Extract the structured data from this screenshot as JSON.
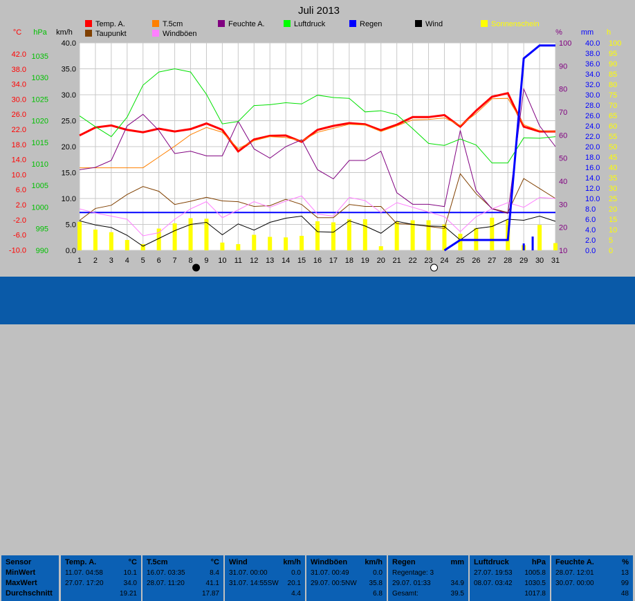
{
  "chart_data": {
    "type": "line",
    "title": "Juli 2013",
    "x": [
      1,
      2,
      3,
      4,
      5,
      6,
      7,
      8,
      9,
      10,
      11,
      12,
      13,
      14,
      15,
      16,
      17,
      18,
      19,
      20,
      21,
      22,
      23,
      24,
      25,
      26,
      27,
      28,
      29,
      30,
      31
    ],
    "axes": {
      "temp": {
        "label": "°C",
        "ticks": [
          "42.0",
          "38.0",
          "34.0",
          "30.0",
          "26.0",
          "22.0",
          "18.0",
          "14.0",
          "10.0",
          "6.0",
          "2.0",
          "-2.0",
          "-6.0",
          "-10.0"
        ],
        "range": [
          -10,
          42
        ],
        "color": "#ff0000"
      },
      "hpa": {
        "label": "hPa",
        "ticks": [
          "1035",
          "1030",
          "1025",
          "1020",
          "1015",
          "1010",
          "1005",
          "1000",
          "995",
          "990"
        ],
        "color": "#00c000"
      },
      "kmh": {
        "label": "km/h",
        "ticks": [
          "40.0",
          "35.0",
          "30.0",
          "25.0",
          "20.0",
          "15.0",
          "10.0",
          "5.0",
          "0.0"
        ],
        "range": [
          0,
          40
        ],
        "color": "#000000"
      },
      "pct": {
        "label": "%",
        "ticks": [
          "100",
          "90",
          "80",
          "70",
          "60",
          "50",
          "40",
          "30",
          "20",
          "10"
        ],
        "range": [
          10,
          100
        ],
        "color": "#800080"
      },
      "mm": {
        "label": "mm",
        "ticks": [
          "40.0",
          "38.0",
          "36.0",
          "34.0",
          "32.0",
          "30.0",
          "28.0",
          "26.0",
          "24.0",
          "22.0",
          "20.0",
          "18.0",
          "16.0",
          "14.0",
          "12.0",
          "10.0",
          "8.0",
          "6.0",
          "4.0",
          "2.0",
          "0.0"
        ],
        "range": [
          0,
          40
        ],
        "color": "#0000ff"
      },
      "h": {
        "label": "h",
        "ticks": [
          "100",
          "95",
          "90",
          "85",
          "80",
          "75",
          "70",
          "65",
          "60",
          "55",
          "50",
          "45",
          "40",
          "35",
          "30",
          "25",
          "20",
          "15",
          "10",
          "5",
          "0"
        ],
        "range": [
          0,
          100
        ],
        "color": "#ffff00"
      }
    },
    "legend": [
      {
        "name": "Temp. A.",
        "color": "#ff0000"
      },
      {
        "name": "T.5cm",
        "color": "#ff8000"
      },
      {
        "name": "Feuchte A.",
        "color": "#800080"
      },
      {
        "name": "Luftdruck",
        "color": "#00ff00"
      },
      {
        "name": "Regen",
        "color": "#0000ff"
      },
      {
        "name": "Wind",
        "color": "#000000"
      },
      {
        "name": "Sonnenschein",
        "color": "#ffff00"
      },
      {
        "name": "Taupunkt",
        "color": "#804000"
      },
      {
        "name": "Windböen",
        "color": "#ff80ff"
      }
    ],
    "series": [
      {
        "name": "Temp. A.",
        "axis": "temp",
        "color": "#ff0000",
        "width": 3,
        "values": [
          18.8,
          20.8,
          21.3,
          20.2,
          19.6,
          20.5,
          19.8,
          20.4,
          21.8,
          20.2,
          14.8,
          17.8,
          18.7,
          18.8,
          17.2,
          20.2,
          21.2,
          21.9,
          21.6,
          20.1,
          21.5,
          23.4,
          23.4,
          23.9,
          21.0,
          25.0,
          28.5,
          29.4,
          21.0,
          19.8,
          19.8
        ]
      },
      {
        "name": "T.5cm",
        "axis": "temp",
        "color": "#ff8000",
        "width": 1,
        "values": [
          10.7,
          10.7,
          10.7,
          10.7,
          10.7,
          13.4,
          16.1,
          19.0,
          20.8,
          19.6,
          15.5,
          17.5,
          18.5,
          18.3,
          17.4,
          19.6,
          20.6,
          21.6,
          21.4,
          19.8,
          21.2,
          22.7,
          22.8,
          23.2,
          21.3,
          24.3,
          28.0,
          28.1,
          21.5,
          20.0,
          19.8
        ]
      },
      {
        "name": "Taupunkt",
        "axis": "temp",
        "color": "#804000",
        "width": 1,
        "values": [
          -2.5,
          0.5,
          1.3,
          4.0,
          6.0,
          4.8,
          1.5,
          2.3,
          3.3,
          2.4,
          2.2,
          1.0,
          1.2,
          2.8,
          1.5,
          -1.8,
          -1.8,
          1.5,
          1.0,
          1.0,
          -3.3,
          -3.5,
          -4.0,
          -4.5,
          9.2,
          4.2,
          0.5,
          -0.5,
          8.0,
          5.5,
          3.0
        ]
      },
      {
        "name": "Feuchte A.",
        "axis": "pct",
        "color": "#800080",
        "width": 1,
        "values": [
          45,
          46,
          49,
          64,
          69,
          62,
          52,
          53,
          51,
          51,
          66,
          54,
          50,
          55,
          58,
          45,
          41,
          49,
          49,
          53,
          35,
          30,
          30,
          29,
          62,
          36,
          28,
          26,
          80,
          64,
          55
        ]
      },
      {
        "name": "Luftdruck",
        "axis": "temp",
        "color": "#00e000",
        "width": 1,
        "values": [
          23.7,
          21.0,
          18.5,
          23.4,
          31.4,
          34.7,
          35.5,
          34.7,
          29.1,
          21.7,
          22.3,
          26.3,
          26.5,
          27.0,
          26.7,
          28.9,
          28.3,
          28.1,
          24.7,
          25.0,
          24.0,
          20.5,
          16.8,
          16.3,
          17.9,
          16.4,
          11.9,
          11.9,
          18.2,
          18.1,
          18.5
        ]
      },
      {
        "name": "Wind",
        "axis": "kmh",
        "color": "#000000",
        "width": 1,
        "values": [
          5.7,
          4.9,
          4.4,
          2.9,
          0.8,
          2.3,
          3.8,
          5.0,
          5.4,
          3.0,
          5.1,
          3.9,
          5.4,
          6.2,
          6.6,
          3.6,
          3.5,
          5.7,
          4.7,
          3.3,
          5.6,
          5.0,
          4.7,
          4.6,
          2.0,
          4.2,
          4.6,
          6.0,
          5.8,
          6.6,
          5.6
        ]
      },
      {
        "name": "Windböen",
        "axis": "kmh",
        "color": "#ff80ff",
        "width": 1,
        "values": [
          8.0,
          7.2,
          6.6,
          6.0,
          2.8,
          3.4,
          6.0,
          8.0,
          9.4,
          6.3,
          7.8,
          9.4,
          8.3,
          9.5,
          10.5,
          7.0,
          6.6,
          10.2,
          9.6,
          7.3,
          9.2,
          8.3,
          7.4,
          6.5,
          3.6,
          6.5,
          8.0,
          9.2,
          8.3,
          10.2,
          10.0
        ]
      },
      {
        "name": "Regen",
        "axis": "mm",
        "color": "#0000ff",
        "width": 3,
        "values": [
          0,
          0,
          0,
          0,
          0,
          0,
          0,
          0,
          0,
          0,
          0,
          0,
          0,
          0,
          0,
          0,
          0,
          0,
          0,
          0,
          0,
          0,
          0,
          0,
          0,
          2.0,
          2.0,
          2.0,
          37.0,
          39.5,
          39.5
        ]
      }
    ],
    "sun_hours": [
      5.5,
      4.0,
      3.5,
      2.0,
      1.2,
      4.2,
      5.2,
      6.2,
      6.1,
      1.5,
      1.2,
      3.0,
      2.6,
      2.5,
      2.8,
      5.6,
      5.4,
      6.0,
      6.0,
      0.8,
      5.5,
      5.8,
      5.8,
      5.0,
      3.2,
      4.3,
      6.3,
      5.8,
      1.0,
      4.9,
      1.4
    ],
    "wind_ref_line": 7.3,
    "moon_markers": [
      {
        "day": 8,
        "phase": "new"
      },
      {
        "day": 23,
        "phase": "full"
      }
    ]
  },
  "stats": {
    "row_labels": {
      "sensor": "Sensor",
      "min": "MinWert",
      "max": "MaxWert",
      "avg": "Durchschnitt"
    },
    "columns": [
      {
        "title": "Temp. A.",
        "unit": "°C",
        "min_date": "11.07.",
        "min_time": "04:58",
        "min_val": "10.1",
        "max_date": "27.07.",
        "max_time": "17:20",
        "max_val": "34.0",
        "avg": "19.21"
      },
      {
        "title": "T.5cm",
        "unit": "°C",
        "min_date": "16.07.",
        "min_time": "03:35",
        "min_val": "8.4",
        "max_date": "28.07.",
        "max_time": "11:20",
        "max_val": "41.1",
        "avg": "17.87"
      },
      {
        "title": "Wind",
        "unit": "km/h",
        "min_date": "31.07.",
        "min_time": "00:00",
        "min_val": "0.0",
        "max_date": "31.07.",
        "max_time": "14:55SW",
        "max_val": "20.1",
        "avg": "4.4"
      },
      {
        "title": "Windböen",
        "unit": "km/h",
        "min_date": "31.07.",
        "min_time": "00:49",
        "min_val": "0.0",
        "max_date": "29.07.",
        "max_time": "00:5NW",
        "max_val": "35.8",
        "avg": "6.8"
      },
      {
        "title": "Regen",
        "unit": "mm",
        "min_date": "Regentage: 3",
        "min_time": "",
        "min_val": "",
        "max_date": "29.07.",
        "max_time": "01:33",
        "max_val": "34.9",
        "avg_label": "Gesamt:",
        "avg": "39.5"
      },
      {
        "title": "Luftdruck",
        "unit": "hPa",
        "min_date": "27.07.",
        "min_time": "19:53",
        "min_val": "1005.8",
        "max_date": "08.07.",
        "max_time": "03:42",
        "max_val": "1030.5",
        "avg": "1017.8"
      },
      {
        "title": "Feuchte A.",
        "unit": "%",
        "min_date": "28.07.",
        "min_time": "12:01",
        "min_val": "13",
        "max_date": "30.07.",
        "max_time": "00:00",
        "max_val": "99",
        "avg": "48"
      }
    ]
  }
}
